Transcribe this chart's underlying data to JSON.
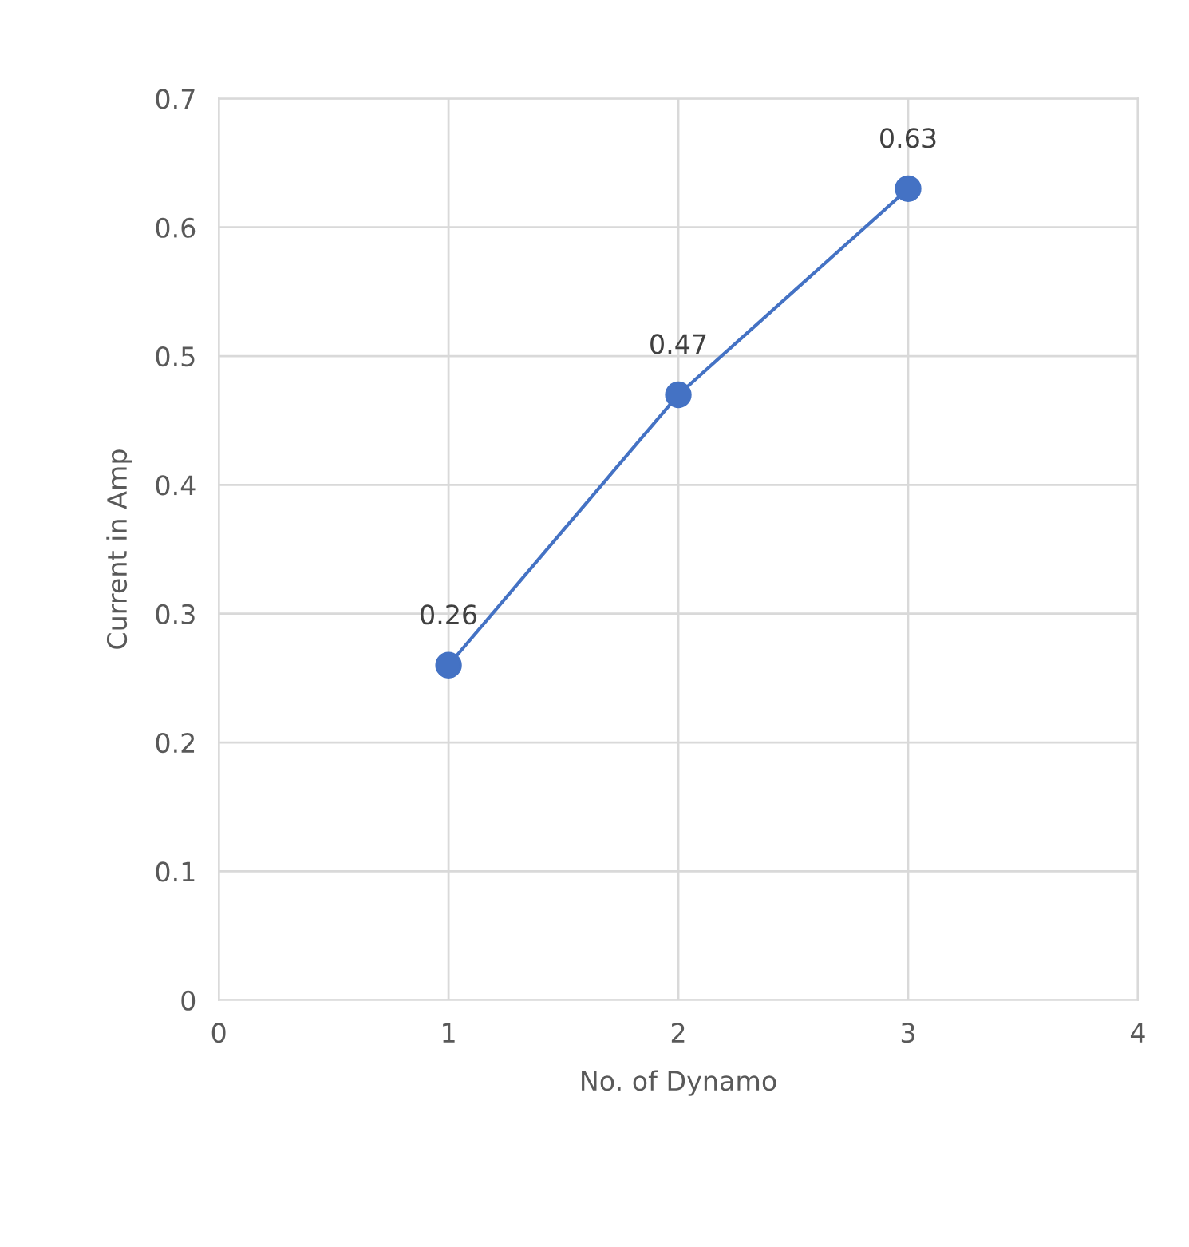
{
  "chart_data": {
    "type": "line",
    "xlabel": "No. of Dynamo",
    "ylabel": "Current in Amp",
    "x": [
      1,
      2,
      3
    ],
    "series": [
      {
        "color": "#4472c4",
        "values": [
          0.26,
          0.47,
          0.63
        ]
      }
    ],
    "xlim": [
      0,
      4
    ],
    "xticks": [
      0,
      1,
      2,
      3,
      4
    ],
    "ylim": [
      0,
      0.7
    ],
    "yticks": [
      0,
      0.1,
      0.2,
      0.3,
      0.4,
      0.5,
      0.6,
      0.7
    ],
    "grid": true,
    "marker": "circle",
    "line_style": "solid",
    "data_labels": true
  }
}
